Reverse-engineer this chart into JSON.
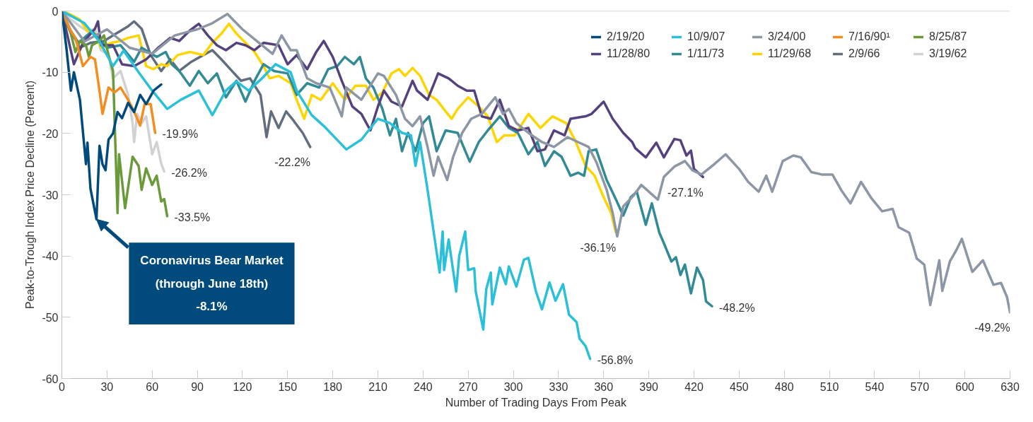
{
  "chart_data": {
    "type": "line",
    "xlabel": "Number of Trading Days From Peak",
    "ylabel": "Peak-to-Trough Index Price Decline (Percent)",
    "xlim": [
      0,
      630
    ],
    "ylim": [
      -60,
      0
    ],
    "xticks": [
      0,
      30,
      60,
      90,
      120,
      150,
      180,
      210,
      240,
      270,
      300,
      330,
      360,
      390,
      420,
      450,
      480,
      510,
      540,
      570,
      600,
      630
    ],
    "yticks": [
      0,
      -10,
      -20,
      -30,
      -40,
      -50,
      -60
    ],
    "legend": "top right",
    "ref_lines": [
      {
        "axis": "y",
        "value": 0,
        "color": "#cccccc"
      }
    ],
    "series": [
      {
        "name": "2/19/20",
        "color": "#004b7c",
        "x": [
          0,
          3,
          6,
          8,
          12,
          16,
          17,
          19,
          23,
          25,
          27,
          29,
          31,
          34,
          37,
          40,
          44,
          48,
          52,
          56,
          61,
          66
        ],
        "values": [
          0,
          -6,
          -13,
          -10,
          -14.5,
          -25,
          -21.5,
          -29,
          -34,
          -22,
          -25,
          -26,
          -21,
          -20,
          -16.5,
          -17.5,
          -15,
          -16.5,
          -13.7,
          -15.2,
          -13,
          -12
        ]
      },
      {
        "name": "10/9/07",
        "color": "#2bc0da",
        "x": [
          0,
          15,
          25,
          34,
          41,
          51,
          60,
          70,
          79,
          91,
          100,
          109,
          116,
          124,
          133,
          142,
          152,
          156,
          166,
          175,
          189,
          199,
          210,
          218,
          226,
          232,
          235,
          238,
          243,
          247,
          251,
          253,
          254,
          257,
          262,
          264,
          268,
          270,
          274,
          275,
          280,
          282,
          285,
          286,
          291,
          295,
          297,
          302,
          307,
          310,
          315,
          319,
          324,
          328,
          333,
          337,
          342,
          344,
          348,
          351
        ],
        "values": [
          0,
          -2,
          -5,
          -9,
          -6.5,
          -10,
          -13,
          -16,
          -14.5,
          -13,
          -17,
          -13,
          -11.5,
          -13,
          -11,
          -8.7,
          -10,
          -13,
          -17,
          -19,
          -22.6,
          -21,
          -17.6,
          -18.3,
          -19.9,
          -20.3,
          -25.3,
          -21.4,
          -29.2,
          -36,
          -42.7,
          -36,
          -42.3,
          -37.3,
          -45.8,
          -40,
          -36,
          -42.3,
          -42,
          -45.8,
          -52,
          -45.4,
          -42.7,
          -47.9,
          -41.9,
          -44.6,
          -41.7,
          -45,
          -40.6,
          -40.3,
          -45.8,
          -48.7,
          -44.3,
          -47.3,
          -44.6,
          -49.6,
          -50.8,
          -53.5,
          -54.7,
          -56.8
        ]
      },
      {
        "name": "3/24/00",
        "color": "#8c96a4",
        "x": [
          0,
          15,
          30,
          45,
          60,
          75,
          90,
          100,
          110,
          120,
          130,
          140,
          146,
          152,
          156,
          163,
          169,
          178,
          186,
          189,
          199,
          210,
          214,
          222,
          228,
          233,
          238,
          243,
          247,
          250,
          256,
          260,
          266,
          272,
          279,
          283,
          288,
          293,
          297,
          302,
          310,
          319,
          327,
          336,
          343,
          350,
          355,
          362,
          366,
          369,
          373,
          380,
          385,
          396,
          400,
          407,
          414,
          419,
          425,
          434,
          441,
          450,
          456,
          463,
          468,
          472,
          479,
          486,
          491,
          498,
          505,
          512,
          518,
          524,
          531,
          538,
          545,
          552,
          556,
          563,
          568,
          573,
          577,
          583,
          585,
          590,
          594,
          598,
          605,
          612,
          619,
          624,
          628,
          630
        ],
        "values": [
          0,
          -5,
          -3,
          -6,
          -7,
          -4,
          -3,
          -2,
          -0.5,
          -3,
          -5,
          -7,
          -4,
          -6.4,
          -6.4,
          -11,
          -11.8,
          -12.5,
          -17.2,
          -12.5,
          -14.5,
          -10.2,
          -10.6,
          -13.7,
          -17.6,
          -18.8,
          -17.2,
          -22.2,
          -26.9,
          -23.8,
          -27.6,
          -23.8,
          -19.9,
          -17.6,
          -16.8,
          -15.6,
          -14.1,
          -16.8,
          -16,
          -18.3,
          -19.9,
          -21.4,
          -22.2,
          -20.6,
          -21.4,
          -22.2,
          -24.6,
          -29.2,
          -33,
          -36.8,
          -31.9,
          -30.1,
          -28.4,
          -30.8,
          -27.1,
          -25.4,
          -24.5,
          -26,
          -26.7,
          -24.9,
          -23.4,
          -25.8,
          -27.9,
          -29.5,
          -26.9,
          -29.5,
          -24.5,
          -23.6,
          -23.9,
          -26.3,
          -26.7,
          -26.7,
          -29.3,
          -31.4,
          -27.9,
          -30.6,
          -32.7,
          -32.3,
          -35.3,
          -36.2,
          -40.4,
          -41.4,
          -48,
          -40.7,
          -45.7,
          -40.9,
          -39.2,
          -37.2,
          -42.6,
          -40.7,
          -44.7,
          -44.4,
          -46.7,
          -49.2
        ]
      },
      {
        "name": "7/16/90¹",
        "color": "#f58c1f",
        "x": [
          0,
          6,
          9,
          14,
          19,
          22,
          25,
          27,
          31,
          35,
          39,
          44,
          48,
          52,
          55,
          59,
          62
        ],
        "values": [
          0,
          -3.3,
          -4.4,
          -9,
          -7.5,
          -7.9,
          -13,
          -16.8,
          -12.5,
          -13.3,
          -12.5,
          -14.5,
          -16.4,
          -18.7,
          -15.2,
          -15.2,
          -19.9
        ]
      },
      {
        "name": "8/25/87",
        "color": "#6a9a3a",
        "x": [
          0,
          1,
          6,
          9,
          12,
          16,
          18,
          20,
          25,
          28,
          31,
          34,
          37,
          38,
          42,
          47,
          51,
          53,
          56,
          60,
          63,
          66,
          68,
          70
        ],
        "values": [
          0,
          -0.6,
          -3.7,
          -6.7,
          -4.9,
          -5.6,
          -7.5,
          -5.6,
          -4.9,
          -4,
          -7.2,
          -9.8,
          -33,
          -23.4,
          -32.2,
          -23.8,
          -25.3,
          -29.2,
          -25.7,
          -28.4,
          -26.9,
          -31.1,
          -30.7,
          -33.5
        ]
      },
      {
        "name": "11/28/80",
        "color": "#54427f",
        "x": [
          0,
          8,
          14,
          22,
          24,
          26,
          34,
          40,
          48,
          56,
          64,
          72,
          78,
          85,
          91,
          97,
          103,
          109,
          116,
          122,
          128,
          134,
          144,
          150,
          156,
          163,
          169,
          174,
          180,
          186,
          193,
          199,
          205,
          210,
          214,
          219,
          226,
          233,
          236,
          243,
          250,
          257,
          263,
          269,
          274,
          279,
          285,
          291,
          297,
          303,
          310,
          316,
          321,
          327,
          334,
          338,
          348,
          352,
          360,
          366,
          373,
          379,
          381,
          388,
          395,
          400,
          407,
          411,
          415,
          418,
          420,
          426
        ],
        "values": [
          0,
          -8.7,
          -5.2,
          -2.9,
          -1.7,
          -5.6,
          -5.6,
          -8.7,
          -9,
          -7.9,
          -6,
          -4.4,
          -4.9,
          -3.2,
          -2.1,
          -4,
          -5.6,
          -6.4,
          -5.2,
          -5.6,
          -6.4,
          -5.2,
          -5.6,
          -8.7,
          -7.2,
          -9.5,
          -6.7,
          -4.9,
          -7.5,
          -11.4,
          -15.6,
          -16.8,
          -19.5,
          -15.6,
          -13,
          -14.8,
          -15.6,
          -11.4,
          -13,
          -14.5,
          -10.2,
          -11,
          -12.2,
          -13,
          -13,
          -17.2,
          -17.6,
          -14.5,
          -18.8,
          -19.5,
          -19.1,
          -22.9,
          -22.6,
          -19.5,
          -20.3,
          -17.6,
          -17.2,
          -16.8,
          -14.8,
          -17.6,
          -19.9,
          -21.4,
          -22.4,
          -23.9,
          -21.5,
          -23.9,
          -20.9,
          -21.1,
          -23.6,
          -22.8,
          -25.8,
          -27.1
        ]
      },
      {
        "name": "1/11/73",
        "color": "#318a94",
        "x": [
          0,
          1,
          11,
          20,
          30,
          39,
          48,
          53,
          63,
          69,
          73,
          78,
          85,
          91,
          97,
          103,
          109,
          116,
          122,
          128,
          134,
          141,
          150,
          156,
          163,
          171,
          177,
          183,
          188,
          194,
          198,
          202,
          207,
          213,
          218,
          222,
          226,
          230,
          235,
          240,
          244,
          249,
          255,
          263,
          271,
          277,
          283,
          291,
          297,
          303,
          310,
          316,
          321,
          327,
          332,
          338,
          343,
          347,
          350,
          355,
          362,
          368,
          373,
          378,
          382,
          388,
          392,
          397,
          400,
          405,
          408,
          411,
          414,
          418,
          422,
          426,
          428,
          432
        ],
        "values": [
          0,
          -1.4,
          -5.2,
          -3.3,
          -6,
          -5.6,
          -8.3,
          -6,
          -7.5,
          -6.7,
          -8.7,
          -9.8,
          -12.2,
          -9.8,
          -11.8,
          -10.2,
          -14.1,
          -11.4,
          -14.8,
          -11.4,
          -8.7,
          -9.8,
          -10.2,
          -13.7,
          -11.8,
          -12.5,
          -9.5,
          -9,
          -7.5,
          -8.7,
          -7.5,
          -11,
          -12.5,
          -16,
          -20.3,
          -17.6,
          -22.9,
          -19.9,
          -22.9,
          -18.3,
          -17.2,
          -22.9,
          -19.5,
          -19.9,
          -24.6,
          -21.4,
          -19.5,
          -17.2,
          -19.1,
          -19.9,
          -23.4,
          -21.4,
          -25.3,
          -22.9,
          -23.8,
          -26.9,
          -26.4,
          -26.9,
          -22.9,
          -22.6,
          -27.6,
          -30.7,
          -33.4,
          -30.4,
          -29.5,
          -34.9,
          -31.4,
          -36.2,
          -37.9,
          -40.9,
          -40.2,
          -43.1,
          -41.4,
          -46.1,
          -41.9,
          -43.9,
          -47.4,
          -48.2
        ]
      },
      {
        "name": "11/29/68",
        "color": "#ffd500",
        "x": [
          0,
          6,
          12,
          17,
          22,
          26,
          33,
          39,
          44,
          51,
          56,
          61,
          66,
          70,
          77,
          85,
          94,
          100,
          106,
          111,
          116,
          122,
          128,
          134,
          138,
          144,
          152,
          156,
          161,
          166,
          172,
          180,
          188,
          195,
          202,
          207,
          213,
          219,
          224,
          228,
          233,
          238,
          244,
          249,
          255,
          259,
          263,
          270,
          277,
          283,
          289,
          294,
          301,
          310,
          318,
          326,
          335,
          341,
          348,
          354,
          360,
          365,
          368
        ],
        "values": [
          0,
          -0.6,
          -1.4,
          -3.3,
          -3.7,
          -6,
          -5.2,
          -4.9,
          -4.4,
          -4,
          -9,
          -9.5,
          -8.7,
          -9,
          -7.2,
          -6.7,
          -7.2,
          -5.2,
          -3.7,
          -2.1,
          -3.7,
          -5.2,
          -6.7,
          -9,
          -11,
          -10.6,
          -11.8,
          -14.5,
          -17.6,
          -13.7,
          -14.5,
          -11.8,
          -14.5,
          -12.2,
          -12.2,
          -14.5,
          -13.3,
          -10.2,
          -9.5,
          -10.6,
          -9.3,
          -10.6,
          -13.7,
          -14.5,
          -16.4,
          -17.6,
          -16,
          -14.1,
          -15.6,
          -17.2,
          -21.4,
          -20.3,
          -20.3,
          -16.8,
          -19.1,
          -17.2,
          -18.3,
          -21.1,
          -25.3,
          -26.9,
          -30.4,
          -33,
          -36.1
        ]
      },
      {
        "name": "2/9/66",
        "color": "#606e7e",
        "x": [
          0,
          6,
          12,
          19,
          28,
          36,
          44,
          48,
          53,
          59,
          66,
          72,
          78,
          86,
          94,
          100,
          106,
          113,
          119,
          125,
          132,
          136,
          139,
          144,
          149,
          153,
          160,
          165
        ],
        "values": [
          0,
          -3.3,
          -6,
          -5.2,
          -4.9,
          -3.7,
          -2.5,
          -1.7,
          -2.9,
          -7.2,
          -9.8,
          -7.9,
          -9.8,
          -8.3,
          -7.2,
          -6.4,
          -7.9,
          -9.8,
          -11.4,
          -11,
          -13.7,
          -20.6,
          -16.4,
          -19.1,
          -16.4,
          -17.6,
          -19.9,
          -22.2
        ]
      },
      {
        "name": "3/19/62",
        "color": "#d0d2d3",
        "x": [
          0,
          6,
          12,
          17,
          22,
          26,
          31,
          34,
          39,
          44,
          47,
          48,
          50,
          53,
          56,
          60,
          63,
          66,
          68
        ],
        "values": [
          0,
          -1.4,
          -2.5,
          -3.3,
          -2.9,
          -6.4,
          -7.2,
          -11,
          -9.8,
          -13.7,
          -18.3,
          -21.4,
          -16.8,
          -18.3,
          -17.2,
          -23.4,
          -21.4,
          -24.9,
          -26.2
        ]
      }
    ],
    "annotations": [
      {
        "text": "Coronavirus Bear Market\n(through June 18th)\n-8.1%",
        "x": 23,
        "y": -34
      },
      {
        "text": "-19.9%",
        "x": 62,
        "y": -19.9
      },
      {
        "text": "-26.2%",
        "x": 68,
        "y": -26.2
      },
      {
        "text": "-33.5%",
        "x": 70,
        "y": -33.5
      },
      {
        "text": "-22.2%",
        "x": 165,
        "y": -22.2
      },
      {
        "text": "-56.8%",
        "x": 351,
        "y": -56.8
      },
      {
        "text": "-36.1%",
        "x": 368,
        "y": -36.1
      },
      {
        "text": "-27.1%",
        "x": 426,
        "y": -27.1
      },
      {
        "text": "-48.2%",
        "x": 432,
        "y": -48.2
      },
      {
        "text": "-49.2%",
        "x": 630,
        "y": -49.2
      }
    ]
  }
}
